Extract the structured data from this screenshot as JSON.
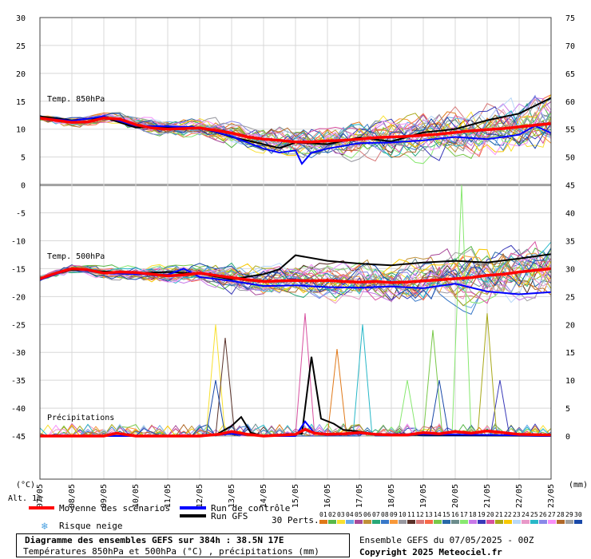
{
  "chart_data": {
    "type": "line",
    "title": "Diagramme des ensembles GEFS sur 384h : 38.5N 17E",
    "subtitle": "Températures 850hPa et 500hPa (°C) , précipitations (mm)",
    "x_ticks": [
      "07/05",
      "08/05",
      "09/05",
      "10/05",
      "11/05",
      "12/05",
      "13/05",
      "14/05",
      "15/05",
      "16/05",
      "17/05",
      "18/05",
      "19/05",
      "20/05",
      "21/05",
      "22/05",
      "23/05"
    ],
    "x_range_days": [
      0,
      16
    ],
    "y_left_ticks": [
      30,
      25,
      20,
      15,
      10,
      5,
      0,
      -5,
      -10,
      -15,
      -20,
      -25,
      -30,
      -35,
      -40,
      -45
    ],
    "y_left_label": "(°C)",
    "y_right_ticks": [
      75,
      70,
      65,
      60,
      55,
      50,
      45,
      40,
      35,
      30,
      25,
      20,
      15,
      10,
      5,
      0
    ],
    "y_right_label": "(mm)",
    "alt_label": "Alt. 1m",
    "panels": [
      {
        "label": "Temp. 850hPa",
        "ylim": [
          0,
          30
        ],
        "right_ylim": [
          45,
          75
        ]
      },
      {
        "label": "Temp. 500hPa",
        "ylim": [
          -45,
          0
        ],
        "right_ylim": [
          0,
          45
        ]
      }
    ],
    "precip_label": "Précipitations",
    "series": [
      {
        "name": "Moyenne des scénarios",
        "color": "#ff0000",
        "t850": [
          [
            0,
            12
          ],
          [
            0.5,
            11.6
          ],
          [
            1,
            11.2
          ],
          [
            1.5,
            11.3
          ],
          [
            2,
            12
          ],
          [
            2.5,
            11.8
          ],
          [
            3,
            10.8
          ],
          [
            3.5,
            10.2
          ],
          [
            4,
            10
          ],
          [
            4.5,
            10.1
          ],
          [
            5,
            10.2
          ],
          [
            5.5,
            9.8
          ],
          [
            6,
            9.3
          ],
          [
            6.5,
            8.6
          ],
          [
            7,
            8.2
          ],
          [
            7.5,
            8
          ],
          [
            8,
            7.7
          ],
          [
            8.5,
            7.7
          ],
          [
            9,
            7.9
          ],
          [
            9.5,
            8
          ],
          [
            10,
            8.2
          ],
          [
            10.5,
            8.5
          ],
          [
            11,
            8.6
          ],
          [
            11.5,
            8.7
          ],
          [
            12,
            8.9
          ],
          [
            12.5,
            9.1
          ],
          [
            13,
            9.4
          ],
          [
            13.5,
            9.7
          ],
          [
            14,
            9.9
          ],
          [
            14.5,
            10.1
          ],
          [
            15,
            10.4
          ],
          [
            15.5,
            10.7
          ],
          [
            16,
            11
          ]
        ],
        "t500": [
          [
            0,
            -16.8
          ],
          [
            0.5,
            -15.8
          ],
          [
            1,
            -15
          ],
          [
            1.5,
            -15.2
          ],
          [
            2,
            -15.8
          ],
          [
            2.5,
            -15.6
          ],
          [
            3,
            -15.7
          ],
          [
            3.5,
            -16
          ],
          [
            4,
            -16.3
          ],
          [
            4.5,
            -16.1
          ],
          [
            5,
            -15.8
          ],
          [
            5.5,
            -16.2
          ],
          [
            6,
            -16.6
          ],
          [
            6.5,
            -17
          ],
          [
            7,
            -17.3
          ],
          [
            7.5,
            -17.2
          ],
          [
            8,
            -17.1
          ],
          [
            8.5,
            -17.2
          ],
          [
            9,
            -17.1
          ],
          [
            9.5,
            -17.3
          ],
          [
            10,
            -17.4
          ],
          [
            10.5,
            -17.3
          ],
          [
            11,
            -17.5
          ],
          [
            11.5,
            -17.4
          ],
          [
            12,
            -17.2
          ],
          [
            12.5,
            -17
          ],
          [
            13,
            -16.8
          ],
          [
            13.5,
            -16.6
          ],
          [
            14,
            -16.2
          ],
          [
            14.5,
            -16
          ],
          [
            15,
            -15.6
          ],
          [
            15.5,
            -15.3
          ],
          [
            16,
            -15
          ]
        ],
        "precip": [
          [
            0,
            0
          ],
          [
            2,
            0
          ],
          [
            2.4,
            0.5
          ],
          [
            3,
            0
          ],
          [
            5,
            0
          ],
          [
            5.6,
            0.3
          ],
          [
            6,
            0.8
          ],
          [
            6.5,
            0.3
          ],
          [
            7,
            0
          ],
          [
            8,
            0.3
          ],
          [
            8.3,
            1.2
          ],
          [
            8.6,
            0.5
          ],
          [
            9,
            0.3
          ],
          [
            9.5,
            0.4
          ],
          [
            10,
            0.6
          ],
          [
            10.5,
            0.3
          ],
          [
            11,
            0.2
          ],
          [
            11.5,
            0.2
          ],
          [
            12,
            0.6
          ],
          [
            12.5,
            0.4
          ],
          [
            13,
            0.8
          ],
          [
            13.5,
            0.5
          ],
          [
            14,
            0.9
          ],
          [
            14.5,
            0.6
          ],
          [
            15,
            0.3
          ],
          [
            16,
            0.2
          ]
        ]
      },
      {
        "name": "Run de contrôle",
        "color": "#0000ff",
        "t850": [
          [
            0,
            12
          ],
          [
            1,
            11.5
          ],
          [
            2,
            12.3
          ],
          [
            3,
            10.6
          ],
          [
            4,
            10.5
          ],
          [
            5,
            10.3
          ],
          [
            5.5,
            9.5
          ],
          [
            6,
            8.7
          ],
          [
            7,
            6.5
          ],
          [
            7.5,
            5.8
          ],
          [
            8,
            6.2
          ],
          [
            8.2,
            3.8
          ],
          [
            8.5,
            5.8
          ],
          [
            9,
            6.5
          ],
          [
            10,
            7.5
          ],
          [
            11,
            7.6
          ],
          [
            12,
            8
          ],
          [
            13,
            8.6
          ],
          [
            14,
            8.2
          ],
          [
            15,
            9
          ],
          [
            15.5,
            10.6
          ],
          [
            16,
            9.3
          ]
        ],
        "t500": [
          [
            0,
            -17
          ],
          [
            1,
            -15
          ],
          [
            2,
            -15.8
          ],
          [
            3,
            -16
          ],
          [
            4,
            -16.1
          ],
          [
            4.5,
            -15
          ],
          [
            5,
            -16.5
          ],
          [
            6,
            -17.2
          ],
          [
            7,
            -18.1
          ],
          [
            8,
            -18
          ],
          [
            9,
            -18.3
          ],
          [
            10,
            -18.4
          ],
          [
            11,
            -18.2
          ],
          [
            12,
            -18.5
          ],
          [
            13,
            -17.7
          ],
          [
            14,
            -19.1
          ],
          [
            15,
            -19.6
          ],
          [
            16,
            -19.2
          ]
        ],
        "precip": [
          [
            0,
            0
          ],
          [
            5,
            0
          ],
          [
            5.5,
            0.2
          ],
          [
            6,
            0.4
          ],
          [
            7,
            0
          ],
          [
            8,
            0
          ],
          [
            8.3,
            2.6
          ],
          [
            8.6,
            0.5
          ],
          [
            9,
            0.2
          ],
          [
            10,
            0.4
          ],
          [
            12,
            0.3
          ],
          [
            14,
            0.2
          ],
          [
            16,
            0
          ]
        ]
      },
      {
        "name": "Run GFS",
        "color": "#000000",
        "t850": [
          [
            0,
            12.3
          ],
          [
            1,
            11.6
          ],
          [
            2,
            12.1
          ],
          [
            3,
            10.3
          ],
          [
            4,
            10.4
          ],
          [
            5,
            10.3
          ],
          [
            6,
            8.6
          ],
          [
            7,
            7.3
          ],
          [
            7.5,
            6.6
          ],
          [
            8,
            7.6
          ],
          [
            9,
            7.3
          ],
          [
            10,
            8.5
          ],
          [
            11,
            7.8
          ],
          [
            12,
            9.4
          ],
          [
            13,
            10
          ],
          [
            14,
            11.6
          ],
          [
            15,
            12.8
          ],
          [
            16,
            15.6
          ]
        ],
        "t500": [
          [
            0,
            -16.7
          ],
          [
            1,
            -15.2
          ],
          [
            2,
            -15.5
          ],
          [
            3,
            -15.8
          ],
          [
            4,
            -15.6
          ],
          [
            5,
            -15.9
          ],
          [
            6,
            -16.9
          ],
          [
            7,
            -16
          ],
          [
            7.5,
            -15.1
          ],
          [
            8,
            -12.6
          ],
          [
            9,
            -13.6
          ],
          [
            10,
            -14.1
          ],
          [
            11,
            -14.4
          ],
          [
            12,
            -13.9
          ],
          [
            13,
            -13.6
          ],
          [
            14,
            -13.9
          ],
          [
            15,
            -13.2
          ],
          [
            16,
            -12.4
          ]
        ],
        "precip": [
          [
            0,
            0
          ],
          [
            5,
            0
          ],
          [
            5.5,
            0.2
          ],
          [
            6,
            1.8
          ],
          [
            6.3,
            3.4
          ],
          [
            6.6,
            0.6
          ],
          [
            7,
            0
          ],
          [
            8.2,
            0.4
          ],
          [
            8.5,
            14.2
          ],
          [
            8.8,
            3.1
          ],
          [
            9.2,
            2.2
          ],
          [
            9.5,
            1.1
          ],
          [
            10,
            0.8
          ],
          [
            10.5,
            0.3
          ],
          [
            12,
            0.2
          ],
          [
            16,
            0
          ]
        ]
      }
    ],
    "perturbations_count": 30,
    "perturbation_colors": [
      "#e07818",
      "#58b848",
      "#f8e030",
      "#68a8e8",
      "#a84898",
      "#c09038",
      "#28a878",
      "#3878c8",
      "#f89838",
      "#9898a0",
      "#583028",
      "#d87878",
      "#f86848",
      "#78c848",
      "#2868a8",
      "#6c8c8c",
      "#88e870",
      "#c878e8",
      "#3838b8",
      "#d850a0",
      "#a8a818",
      "#f8c800",
      "#b8d8f8",
      "#e898c8",
      "#28b8c8",
      "#8888e8",
      "#f890f8",
      "#b06828",
      "#a0a0a0",
      "#1848a8"
    ],
    "precip_peaks": [
      {
        "day": 5.5,
        "mm": 20.0,
        "color": "#f8e030"
      },
      {
        "day": 5.8,
        "mm": 17.6,
        "color": "#583028"
      },
      {
        "day": 5.5,
        "mm": 10.0,
        "color": "#1848a8"
      },
      {
        "day": 8.3,
        "mm": 22.0,
        "color": "#d850a0"
      },
      {
        "day": 9.3,
        "mm": 15.6,
        "color": "#e07818"
      },
      {
        "day": 10.1,
        "mm": 20.0,
        "color": "#28b8c8"
      },
      {
        "day": 11.5,
        "mm": 10.0,
        "color": "#88e870"
      },
      {
        "day": 12.3,
        "mm": 19.0,
        "color": "#78c848"
      },
      {
        "day": 12.5,
        "mm": 10.0,
        "color": "#1848a8"
      },
      {
        "day": 13.2,
        "mm": 45.0,
        "color": "#88e870"
      },
      {
        "day": 14.4,
        "mm": 10.0,
        "color": "#3838b8"
      },
      {
        "day": 14.0,
        "mm": 22.0,
        "color": "#a8a818"
      }
    ]
  },
  "legend": {
    "mean": "Moyenne des scénarios",
    "control": "Run de contrôle",
    "gfs": "Run GFS",
    "snow": "Risque neige",
    "perts": "30 Perts.",
    "pert_numbers": [
      "01",
      "02",
      "03",
      "04",
      "05",
      "06",
      "07",
      "08",
      "09",
      "10",
      "11",
      "12",
      "13",
      "14",
      "15",
      "16",
      "17",
      "18",
      "19",
      "20",
      "21",
      "22",
      "23",
      "24",
      "25",
      "26",
      "27",
      "28",
      "29",
      "30"
    ]
  },
  "footer": {
    "title": "Diagramme des ensembles GEFS sur 384h : 38.5N 17E",
    "subtitle": "Températures 850hPa et 500hPa (°C) , précipitations (mm)",
    "ensemble": "Ensemble GEFS du 07/05/2025 - 00Z",
    "copyright": "Copyright 2025 Meteociel.fr"
  }
}
